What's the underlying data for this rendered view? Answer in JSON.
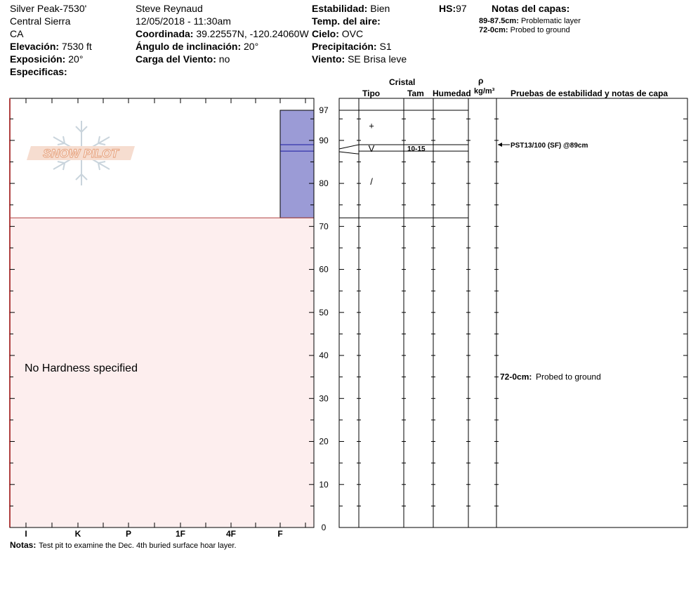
{
  "header": {
    "site": "Silver Peak-7530'",
    "range": "Central Sierra",
    "state": "CA",
    "elevation_label": "Elevación:",
    "elevation_value": "7530 ft",
    "aspect_label": "Exposición:",
    "aspect_value": "20°",
    "specifics_label": "Especificas:",
    "observer": "Steve Reynaud",
    "datetime": "12/05/2018 - 11:30am",
    "coord_label": "Coordinada:",
    "coord_value": "39.22557N, -120.24060W",
    "slope_label": "Ángulo de inclinación:",
    "slope_value": "20°",
    "wind_load_label": "Carga del Viento:",
    "wind_load_value": "no",
    "stability_label": "Estabilidad:",
    "stability_value": "Bien",
    "air_temp_label": "Temp. del aire:",
    "air_temp_value": "",
    "sky_label": "Cielo:",
    "sky_value": "OVC",
    "precip_label": "Precipitación:",
    "precip_value": "S1",
    "wind_label": "Viento:",
    "wind_value": "SE  Brisa leve",
    "hs_label": "HS:",
    "hs_value": "97",
    "layer_notes_title": "Notas del capas:",
    "layer_notes": [
      {
        "range": "89-87.5cm:",
        "text": "Problematic layer"
      },
      {
        "range": "72-0cm:",
        "text": "Probed to ground"
      }
    ]
  },
  "columns": {
    "crystal": "Cristal",
    "type": "Tipo",
    "size": "Tam",
    "moisture": "Humedad",
    "rho": "ρ",
    "density_unit": "kg/m³",
    "tests": "Pruebas de estabilidad y notas de capa"
  },
  "logo_text": "SNOW PILOT",
  "no_hardness": "No Hardness specified",
  "notes_label": "Notas:",
  "notes_text": "Test pit to examine the Dec. 4th buried surface hoar layer.",
  "colors": {
    "hardness_fill": "#9b9bd6",
    "hardness_line": "#1a1aa0",
    "probed_fill": "#fdeeee",
    "probed_line": "#b04040",
    "logo": "#e8a886"
  },
  "chart_data": {
    "type": "snow-profile",
    "ylim": [
      0,
      97
    ],
    "y_ticks": [
      0,
      10,
      20,
      30,
      40,
      50,
      60,
      70,
      80,
      90,
      97
    ],
    "hardness_ticks": [
      "I",
      "K",
      "P",
      "1F",
      "4F",
      "F"
    ],
    "hardness_layers": [
      {
        "top": 97,
        "bottom": 72,
        "hardness": "F"
      }
    ],
    "weak_layer": {
      "top": 89,
      "bottom": 87.5
    },
    "probed_region": {
      "top": 72,
      "bottom": 0
    },
    "layer_boundaries": [
      97,
      89,
      87.5,
      72
    ],
    "grain_types": [
      {
        "y": 93.5,
        "symbol": "+"
      },
      {
        "y": 88.2,
        "symbol": "V",
        "size": "10-15"
      },
      {
        "y": 80.5,
        "symbol": "/"
      }
    ],
    "tests": [
      {
        "y": 89,
        "text": "PST13/100 (SF) @89cm"
      }
    ],
    "layer_comments": [
      {
        "y": 35,
        "range": "72-0cm:",
        "text": "Probed to ground"
      }
    ]
  }
}
